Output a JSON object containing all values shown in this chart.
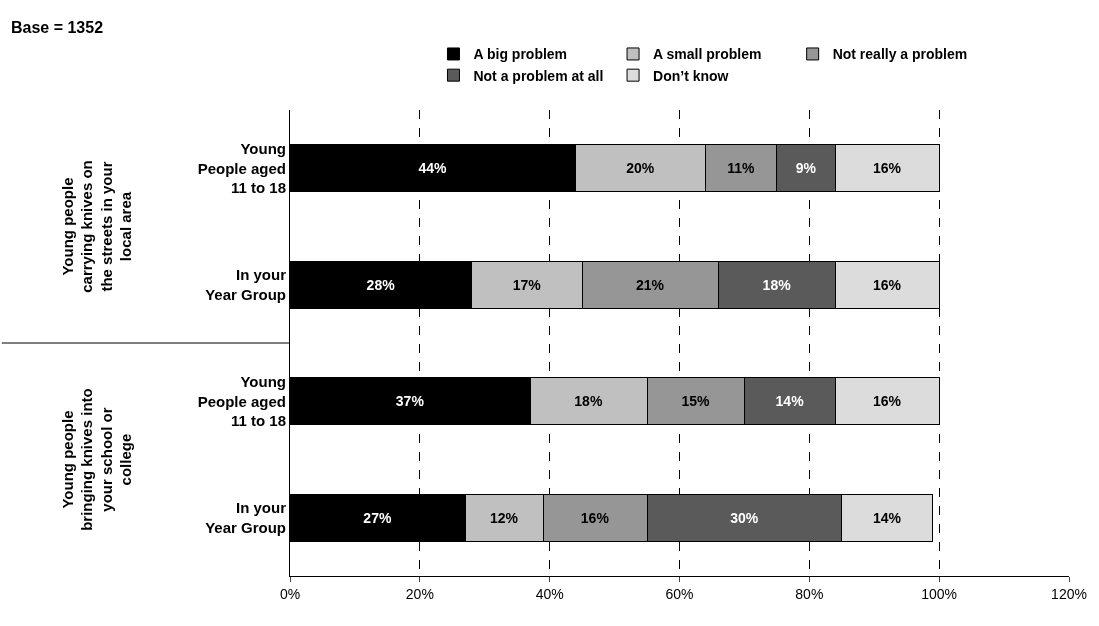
{
  "chart_data": {
    "type": "bar",
    "orientation": "horizontal",
    "stacked": true,
    "title": "Base = 1352",
    "categories": [
      "Young People aged 11 to 18",
      "In your Year Group",
      "Young People aged 11 to 18",
      "In your Year Group"
    ],
    "series": [
      {
        "name": "A big problem",
        "color": "#000000",
        "values": [
          44,
          28,
          37,
          27
        ],
        "value_labels": [
          "44%",
          "28%",
          "37%",
          "27%"
        ]
      },
      {
        "name": "A small problem",
        "color": "#c0c0c0",
        "values": [
          20,
          17,
          18,
          12
        ],
        "value_labels": [
          "20%",
          "17%",
          "18%",
          "12%"
        ]
      },
      {
        "name": "Not really a problem",
        "color": "#969696",
        "values": [
          11,
          21,
          15,
          16
        ],
        "value_labels": [
          "11%",
          "21%",
          "15%",
          "16%"
        ]
      },
      {
        "name": "Not a problem at all",
        "color": "#5a5a5a",
        "values": [
          9,
          18,
          14,
          30
        ],
        "value_labels": [
          "9%",
          "18%",
          "14%",
          "30%"
        ]
      },
      {
        "name": "Don’t know",
        "color": "#dcdcdc",
        "values": [
          16,
          16,
          16,
          14
        ],
        "value_labels": [
          "16%",
          "16%",
          "16%",
          "14%"
        ]
      }
    ],
    "annotations": [
      "Young people carrying knives on the streets in your local area",
      "Young people bringing knives into your school or college"
    ],
    "xlim": [
      0,
      120
    ],
    "xticks": [
      {
        "value": 0,
        "label": "0%"
      },
      {
        "value": 20,
        "label": "20%"
      },
      {
        "value": 40,
        "label": "40%"
      },
      {
        "value": 60,
        "label": "60%"
      },
      {
        "value": 80,
        "label": "80%"
      },
      {
        "value": 100,
        "label": "100%"
      },
      {
        "value": 120,
        "label": "120%"
      }
    ],
    "grid": "x",
    "legend": "top"
  }
}
